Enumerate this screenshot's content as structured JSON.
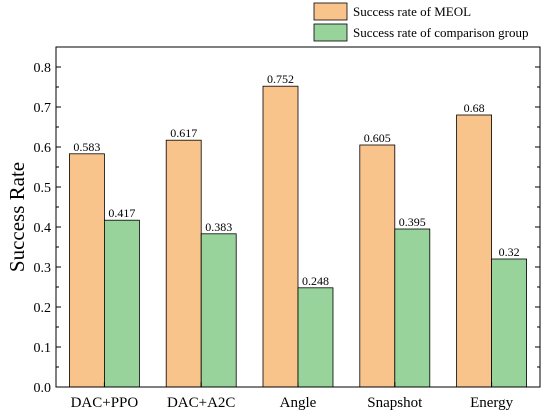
{
  "chart_data": {
    "type": "bar",
    "categories": [
      "DAC+PPO",
      "DAC+A2C",
      "Angle",
      "Snapshot",
      "Energy"
    ],
    "series": [
      {
        "name": "Success rate of MEOL",
        "values": [
          0.583,
          0.617,
          0.752,
          0.605,
          0.68
        ],
        "color": "#F9C48C"
      },
      {
        "name": "Success rate of comparison group",
        "values": [
          0.417,
          0.383,
          0.248,
          0.395,
          0.32
        ],
        "color": "#97D39A"
      }
    ],
    "data_labels": [
      [
        "0.583",
        "0.617",
        "0.752",
        "0.605",
        "0.68"
      ],
      [
        "0.417",
        "0.383",
        "0.248",
        "0.395",
        "0.32"
      ]
    ],
    "title": "",
    "xlabel": "",
    "ylabel": "Success Rate",
    "ylim": [
      0,
      0.85
    ],
    "yticks": [
      "0.0",
      "0.1",
      "0.2",
      "0.3",
      "0.4",
      "0.5",
      "0.6",
      "0.7",
      "0.8"
    ],
    "grid": false,
    "legend_position": "top-right, above plot"
  }
}
